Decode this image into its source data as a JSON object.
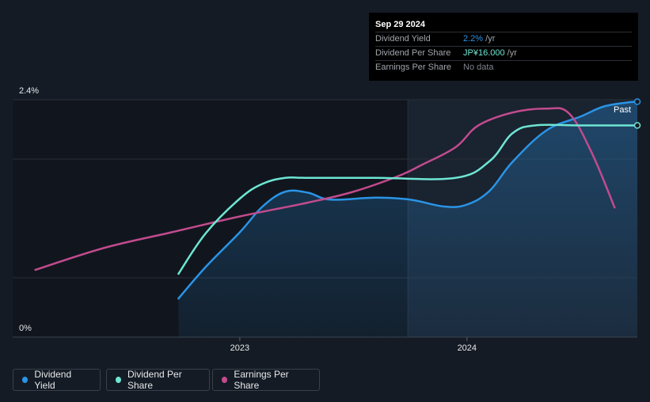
{
  "tooltip": {
    "date": "Sep 29 2024",
    "rows": [
      {
        "label": "Dividend Yield",
        "value": "2.2%",
        "unit": " /yr",
        "color": "#2a94e6"
      },
      {
        "label": "Dividend Per Share",
        "value": "JP¥16.000",
        "unit": " /yr",
        "color": "#6ee6d4"
      },
      {
        "label": "Earnings Per Share",
        "value": "No data",
        "unit": "",
        "color": "#7e838b"
      }
    ]
  },
  "legend": [
    {
      "label": "Dividend Yield",
      "color": "#2a94e6"
    },
    {
      "label": "Dividend Per Share",
      "color": "#6ee6d4"
    },
    {
      "label": "Earnings Per Share",
      "color": "#c24b8e"
    }
  ],
  "colors": {
    "background": "#151b24",
    "grid": "#3a404a",
    "past_band": "#1a2330"
  },
  "chart_data": {
    "type": "line",
    "title": "",
    "xlabel": "",
    "ylabel": "",
    "ylim": [
      0,
      2.4
    ],
    "y_tick_labels": [
      "2.4%",
      "0%"
    ],
    "x_tick_labels": [
      {
        "label": "2023",
        "x": 2023.0
      },
      {
        "label": "2024",
        "x": 2024.0
      }
    ],
    "xlim": [
      2022.0,
      2024.75
    ],
    "past_label": "Past",
    "past_start": 2023.74,
    "series": [
      {
        "name": "Dividend Yield",
        "color": "#2a94e6",
        "area": true,
        "points": [
          [
            2022.73,
            0.39
          ],
          [
            2022.85,
            0.71
          ],
          [
            2023.0,
            1.06
          ],
          [
            2023.1,
            1.32
          ],
          [
            2023.2,
            1.47
          ],
          [
            2023.3,
            1.46
          ],
          [
            2023.4,
            1.39
          ],
          [
            2023.6,
            1.41
          ],
          [
            2023.75,
            1.39
          ],
          [
            2023.9,
            1.32
          ],
          [
            2024.0,
            1.34
          ],
          [
            2024.1,
            1.48
          ],
          [
            2024.2,
            1.77
          ],
          [
            2024.35,
            2.09
          ],
          [
            2024.5,
            2.23
          ],
          [
            2024.6,
            2.33
          ],
          [
            2024.7,
            2.37
          ],
          [
            2024.75,
            2.38
          ]
        ]
      },
      {
        "name": "Dividend Per Share",
        "color": "#6ee6d4",
        "points": [
          [
            2022.73,
            0.64
          ],
          [
            2022.85,
            1.05
          ],
          [
            2023.0,
            1.4
          ],
          [
            2023.1,
            1.55
          ],
          [
            2023.2,
            1.61
          ],
          [
            2023.3,
            1.61
          ],
          [
            2023.6,
            1.61
          ],
          [
            2023.95,
            1.61
          ],
          [
            2024.1,
            1.78
          ],
          [
            2024.2,
            2.06
          ],
          [
            2024.3,
            2.14
          ],
          [
            2024.5,
            2.14
          ],
          [
            2024.75,
            2.14
          ]
        ]
      },
      {
        "name": "Earnings Per Share",
        "color": "#c24b8e",
        "points": [
          [
            2022.1,
            0.68
          ],
          [
            2022.4,
            0.9
          ],
          [
            2022.7,
            1.06
          ],
          [
            2023.0,
            1.22
          ],
          [
            2023.3,
            1.36
          ],
          [
            2023.5,
            1.47
          ],
          [
            2023.7,
            1.63
          ],
          [
            2023.8,
            1.74
          ],
          [
            2023.95,
            1.92
          ],
          [
            2024.05,
            2.14
          ],
          [
            2024.2,
            2.27
          ],
          [
            2024.35,
            2.31
          ],
          [
            2024.45,
            2.26
          ],
          [
            2024.55,
            1.86
          ],
          [
            2024.65,
            1.31
          ]
        ]
      }
    ]
  }
}
